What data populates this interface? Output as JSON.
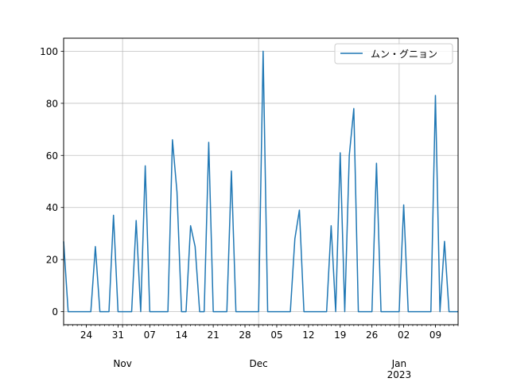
{
  "chart_data": {
    "type": "line",
    "title": "",
    "xlabel": "",
    "ylabel": "",
    "x_start": "2022-10-19",
    "x_end": "2023-01-14",
    "ylim": [
      -5,
      105
    ],
    "yticks": [
      0,
      20,
      40,
      60,
      80,
      100
    ],
    "grid": true,
    "legend_position": "upper right",
    "xticks": [
      {
        "date": "2022-10-24",
        "label": "24"
      },
      {
        "date": "2022-10-31",
        "label": "31"
      },
      {
        "date": "2022-11-07",
        "label": "07"
      },
      {
        "date": "2022-11-14",
        "label": "14"
      },
      {
        "date": "2022-11-21",
        "label": "21"
      },
      {
        "date": "2022-11-28",
        "label": "28"
      },
      {
        "date": "2022-12-05",
        "label": "05"
      },
      {
        "date": "2022-12-12",
        "label": "12"
      },
      {
        "date": "2022-12-19",
        "label": "19"
      },
      {
        "date": "2022-12-26",
        "label": "26"
      },
      {
        "date": "2023-01-02",
        "label": "02"
      },
      {
        "date": "2023-01-09",
        "label": "09"
      }
    ],
    "month_labels": [
      {
        "date": "2022-11-01",
        "label": "Nov"
      },
      {
        "date": "2022-12-01",
        "label": "Dec"
      },
      {
        "date": "2023-01-01",
        "label": "Jan"
      }
    ],
    "year_labels": [
      {
        "date": "2023-01-01",
        "label": "2023"
      }
    ],
    "series": [
      {
        "name": "ムン・グニョン",
        "color": "#1f77b4",
        "points": [
          [
            "2022-10-19",
            27
          ],
          [
            "2022-10-20",
            0
          ],
          [
            "2022-10-25",
            0
          ],
          [
            "2022-10-26",
            25
          ],
          [
            "2022-10-27",
            0
          ],
          [
            "2022-10-29",
            0
          ],
          [
            "2022-10-30",
            37
          ],
          [
            "2022-10-31",
            0
          ],
          [
            "2022-11-03",
            0
          ],
          [
            "2022-11-04",
            35
          ],
          [
            "2022-11-05",
            0
          ],
          [
            "2022-11-06",
            56
          ],
          [
            "2022-11-07",
            0
          ],
          [
            "2022-11-11",
            0
          ],
          [
            "2022-11-12",
            66
          ],
          [
            "2022-11-13",
            46
          ],
          [
            "2022-11-14",
            0
          ],
          [
            "2022-11-15",
            0
          ],
          [
            "2022-11-16",
            33
          ],
          [
            "2022-11-17",
            25
          ],
          [
            "2022-11-18",
            0
          ],
          [
            "2022-11-19",
            0
          ],
          [
            "2022-11-20",
            65
          ],
          [
            "2022-11-21",
            0
          ],
          [
            "2022-11-24",
            0
          ],
          [
            "2022-11-25",
            54
          ],
          [
            "2022-11-26",
            0
          ],
          [
            "2022-12-01",
            0
          ],
          [
            "2022-12-02",
            100
          ],
          [
            "2022-12-03",
            0
          ],
          [
            "2022-12-08",
            0
          ],
          [
            "2022-12-09",
            28
          ],
          [
            "2022-12-10",
            39
          ],
          [
            "2022-12-11",
            0
          ],
          [
            "2022-12-16",
            0
          ],
          [
            "2022-12-17",
            33
          ],
          [
            "2022-12-18",
            0
          ],
          [
            "2022-12-19",
            61
          ],
          [
            "2022-12-20",
            0
          ],
          [
            "2022-12-21",
            60
          ],
          [
            "2022-12-22",
            78
          ],
          [
            "2022-12-23",
            0
          ],
          [
            "2022-12-26",
            0
          ],
          [
            "2022-12-27",
            57
          ],
          [
            "2022-12-28",
            0
          ],
          [
            "2023-01-01",
            0
          ],
          [
            "2023-01-02",
            41
          ],
          [
            "2023-01-03",
            0
          ],
          [
            "2023-01-08",
            0
          ],
          [
            "2023-01-09",
            83
          ],
          [
            "2023-01-10",
            0
          ],
          [
            "2023-01-11",
            27
          ],
          [
            "2023-01-12",
            0
          ],
          [
            "2023-01-14",
            0
          ]
        ]
      }
    ]
  }
}
